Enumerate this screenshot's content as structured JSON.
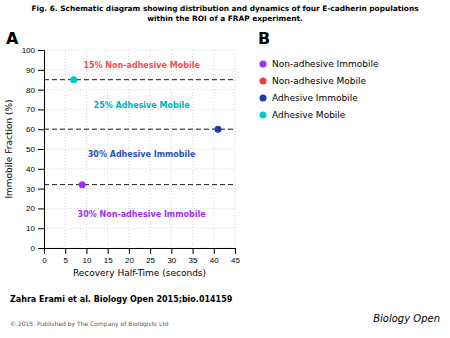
{
  "chart_data": {
    "type": "scatter",
    "title": "Fig. 6. Schematic diagram showing distribution and dynamics of four E-cadherin populations",
    "subtitle": "within the ROI of a FRAP experiment.",
    "panel_labels": [
      "A",
      "B"
    ],
    "xlabel": "Recovery Half-Time (seconds)",
    "ylabel": "Immobile Fraction (%)",
    "xlim": [
      0,
      45
    ],
    "ylim": [
      0,
      100
    ],
    "xticks": [
      0,
      5,
      10,
      15,
      20,
      25,
      30,
      35,
      40,
      45
    ],
    "yticks": [
      0,
      10,
      20,
      30,
      40,
      50,
      60,
      70,
      80,
      90,
      100
    ],
    "grid": true,
    "legend": "right",
    "hlines": [
      85,
      60,
      32
    ],
    "annotations": [
      {
        "text": "15% Non-adhesive Mobile",
        "x": 23,
        "y": 92,
        "color": "#e8524a"
      },
      {
        "text": "25% Adhesive Mobile",
        "x": 23,
        "y": 72,
        "color": "#00b0c0"
      },
      {
        "text": "30% Adhesive Immobile",
        "x": 23,
        "y": 47,
        "color": "#2d4fb8"
      },
      {
        "text": "30% Non-adhesive Immobile",
        "x": 23,
        "y": 17,
        "color": "#9b30ff"
      }
    ],
    "series": [
      {
        "name": "Non-adhesive Immobile",
        "color": "#9b30ff",
        "x": [
          9
        ],
        "values": [
          32
        ]
      },
      {
        "name": "Non-adhesive Mobile",
        "color": "#e84040",
        "x": [],
        "values": []
      },
      {
        "name": "Adhesive Immobile",
        "color": "#1e3aaa",
        "x": [
          41
        ],
        "values": [
          60
        ]
      },
      {
        "name": "Adhesive Mobile",
        "color": "#00c8d7",
        "x": [
          7
        ],
        "values": [
          85
        ]
      }
    ],
    "footer": "Zahra Erami et al. Biology Open 2015;bio.014159",
    "copyright": "© 2015. Published by The Company of Biologists Ltd",
    "logo_text": "Biology Open"
  }
}
